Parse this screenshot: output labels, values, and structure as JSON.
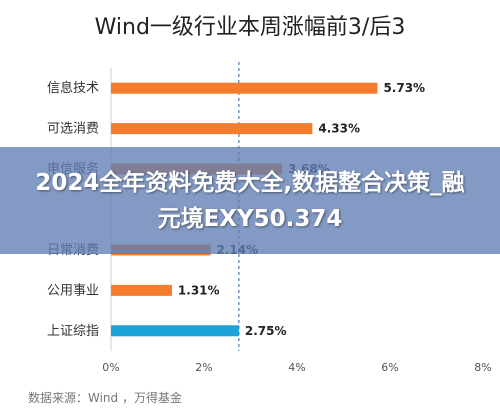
{
  "chart_data": {
    "type": "bar",
    "orientation": "horizontal",
    "title": "Wind一级行业本周涨幅前3/后3",
    "categories": [
      "信息技术",
      "可选消费",
      "电信服务",
      "",
      "日常消费",
      "公用事业",
      "上证综指"
    ],
    "values": [
      5.73,
      4.33,
      3.68,
      null,
      2.14,
      1.31,
      2.75
    ],
    "value_labels": [
      "5.73%",
      "4.33%",
      "3.68%",
      "",
      "2.14%",
      "1.31%",
      "2.75%"
    ],
    "xlim": [
      0,
      8
    ],
    "x_ticks": [
      "0%",
      "2%",
      "4%",
      "6%",
      "8%"
    ],
    "reference_line": 2.75,
    "source": "数据来源：Wind ，万得基金",
    "grid": false,
    "colors": {
      "bar": "#F47C2C",
      "highlight": "#1AA3D6",
      "reference": "#1E5FA6"
    }
  },
  "overlay": {
    "text": "2024全年资料免费大全,数据整合决策_融元境EXY50.374"
  }
}
